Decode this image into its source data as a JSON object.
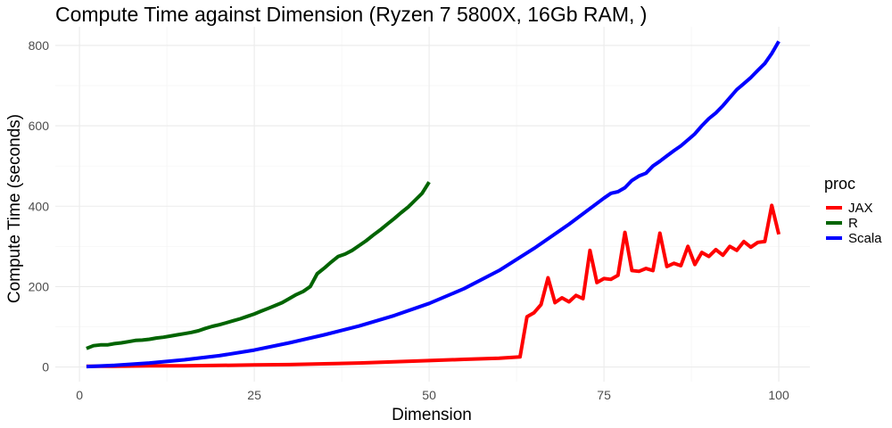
{
  "chart_data": {
    "type": "line",
    "title": "Compute Time against Dimension (Ryzen 7 5800X, 16Gb RAM, )",
    "xlabel": "Dimension",
    "ylabel": "Compute Time (seconds)",
    "xlim": [
      1,
      100
    ],
    "ylim": [
      0,
      810
    ],
    "xticks": [
      0,
      25,
      50,
      75,
      100
    ],
    "yticks": [
      0,
      200,
      400,
      600,
      800
    ],
    "grid": true,
    "legend": {
      "title": "proc",
      "position": "right"
    },
    "series": [
      {
        "name": "JAX",
        "color": "#ff0000",
        "x": [
          1,
          5,
          10,
          15,
          20,
          25,
          30,
          35,
          40,
          45,
          50,
          55,
          60,
          63,
          64,
          65,
          66,
          67,
          68,
          69,
          70,
          71,
          72,
          73,
          74,
          75,
          76,
          77,
          78,
          79,
          80,
          81,
          82,
          83,
          84,
          85,
          86,
          87,
          88,
          89,
          90,
          91,
          92,
          93,
          94,
          95,
          96,
          97,
          98,
          99,
          100
        ],
        "y": [
          2,
          2,
          3,
          3,
          4,
          5,
          6,
          8,
          10,
          13,
          16,
          19,
          22,
          25,
          125,
          135,
          155,
          222,
          160,
          172,
          162,
          178,
          170,
          290,
          210,
          220,
          218,
          228,
          335,
          240,
          238,
          245,
          240,
          333,
          250,
          258,
          252,
          300,
          255,
          285,
          275,
          292,
          278,
          300,
          290,
          312,
          298,
          310,
          312,
          402,
          330
        ]
      },
      {
        "name": "R",
        "color": "#006400",
        "x": [
          1,
          2,
          3,
          4,
          5,
          6,
          7,
          8,
          9,
          10,
          11,
          12,
          13,
          14,
          15,
          16,
          17,
          18,
          19,
          20,
          21,
          22,
          23,
          24,
          25,
          26,
          27,
          28,
          29,
          30,
          31,
          32,
          33,
          34,
          35,
          36,
          37,
          38,
          39,
          40,
          41,
          42,
          43,
          44,
          45,
          46,
          47,
          48,
          49,
          50
        ],
        "y": [
          46,
          53,
          55,
          55,
          58,
          60,
          63,
          66,
          67,
          69,
          72,
          74,
          77,
          80,
          83,
          86,
          90,
          96,
          101,
          105,
          110,
          115,
          120,
          126,
          132,
          139,
          146,
          153,
          160,
          170,
          180,
          188,
          200,
          232,
          246,
          261,
          275,
          281,
          290,
          302,
          314,
          328,
          341,
          355,
          369,
          384,
          398,
          415,
          432,
          460
        ]
      },
      {
        "name": "Scala",
        "color": "#0000ff",
        "x": [
          1,
          5,
          10,
          15,
          20,
          25,
          30,
          35,
          40,
          45,
          50,
          55,
          60,
          65,
          70,
          75,
          76,
          77,
          78,
          79,
          80,
          81,
          82,
          83,
          84,
          85,
          86,
          87,
          88,
          89,
          90,
          91,
          92,
          93,
          94,
          95,
          96,
          97,
          98,
          99,
          100
        ],
        "y": [
          1,
          4,
          10,
          18,
          28,
          42,
          60,
          80,
          102,
          128,
          158,
          195,
          240,
          295,
          355,
          420,
          432,
          436,
          446,
          464,
          475,
          482,
          500,
          512,
          525,
          538,
          550,
          565,
          580,
          600,
          618,
          632,
          650,
          670,
          690,
          705,
          720,
          738,
          755,
          780,
          810
        ]
      }
    ]
  }
}
